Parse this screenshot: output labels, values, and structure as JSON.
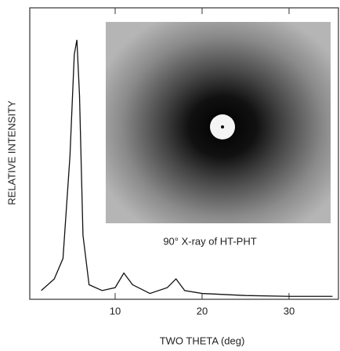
{
  "chart_data": {
    "type": "line",
    "x_label": "TWO THETA (deg)",
    "y_label": "RELATIVE INTENSITY",
    "annotation": "90° X-ray of HT-PHT",
    "x": [
      1.5,
      3.0,
      4.0,
      4.8,
      5.3,
      5.6,
      5.9,
      6.3,
      7.0,
      8.5,
      10.0,
      11.0,
      12.0,
      14.0,
      16.0,
      17.0,
      18.0,
      20.0,
      25.0,
      30.0,
      35.0
    ],
    "values": [
      3,
      7,
      14,
      49,
      84,
      89,
      70,
      22,
      5,
      3,
      4,
      9,
      5,
      2,
      4,
      7,
      3,
      2,
      1.3,
      1,
      1
    ],
    "color": "#111111",
    "xlim": [
      0,
      35.5
    ],
    "xticks": [
      10,
      20,
      30
    ],
    "ylim": [
      0,
      100
    ]
  }
}
